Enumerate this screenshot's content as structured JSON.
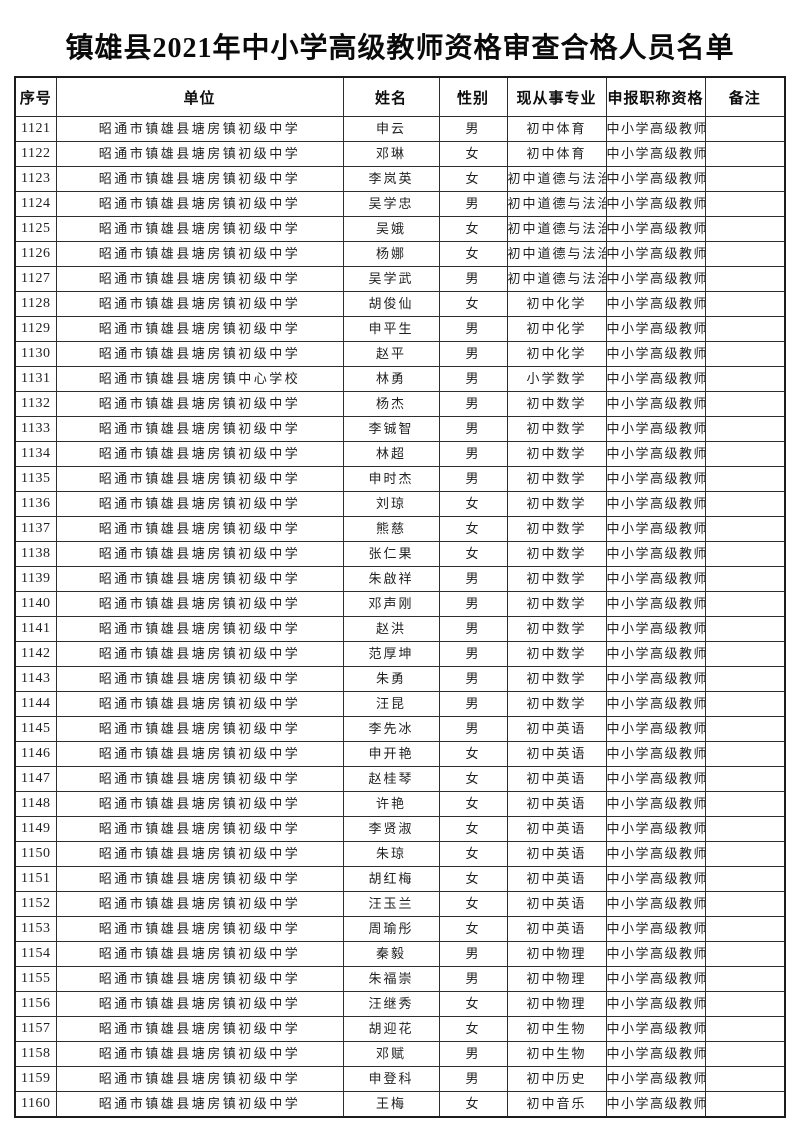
{
  "page": {
    "title": "镇雄县2021年中小学高级教师资格审查合格人员名单"
  },
  "table": {
    "headers": [
      "序号",
      "单位",
      "姓名",
      "性别",
      "现从事专业",
      "申报职称资格",
      "备注"
    ],
    "rows": [
      {
        "no": "1121",
        "unit": "昭通市镇雄县塘房镇初级中学",
        "name": "申云",
        "gender": "男",
        "major": "初中体育",
        "title": "中小学高级教师",
        "remark": ""
      },
      {
        "no": "1122",
        "unit": "昭通市镇雄县塘房镇初级中学",
        "name": "邓琳",
        "gender": "女",
        "major": "初中体育",
        "title": "中小学高级教师",
        "remark": ""
      },
      {
        "no": "1123",
        "unit": "昭通市镇雄县塘房镇初级中学",
        "name": "李岚英",
        "gender": "女",
        "major": "初中道德与法治",
        "title": "中小学高级教师",
        "remark": ""
      },
      {
        "no": "1124",
        "unit": "昭通市镇雄县塘房镇初级中学",
        "name": "吴学忠",
        "gender": "男",
        "major": "初中道德与法治",
        "title": "中小学高级教师",
        "remark": ""
      },
      {
        "no": "1125",
        "unit": "昭通市镇雄县塘房镇初级中学",
        "name": "吴娥",
        "gender": "女",
        "major": "初中道德与法治",
        "title": "中小学高级教师",
        "remark": ""
      },
      {
        "no": "1126",
        "unit": "昭通市镇雄县塘房镇初级中学",
        "name": "杨娜",
        "gender": "女",
        "major": "初中道德与法治",
        "title": "中小学高级教师",
        "remark": ""
      },
      {
        "no": "1127",
        "unit": "昭通市镇雄县塘房镇初级中学",
        "name": "吴学武",
        "gender": "男",
        "major": "初中道德与法治",
        "title": "中小学高级教师",
        "remark": ""
      },
      {
        "no": "1128",
        "unit": "昭通市镇雄县塘房镇初级中学",
        "name": "胡俊仙",
        "gender": "女",
        "major": "初中化学",
        "title": "中小学高级教师",
        "remark": ""
      },
      {
        "no": "1129",
        "unit": "昭通市镇雄县塘房镇初级中学",
        "name": "申平生",
        "gender": "男",
        "major": "初中化学",
        "title": "中小学高级教师",
        "remark": ""
      },
      {
        "no": "1130",
        "unit": "昭通市镇雄县塘房镇初级中学",
        "name": "赵平",
        "gender": "男",
        "major": "初中化学",
        "title": "中小学高级教师",
        "remark": ""
      },
      {
        "no": "1131",
        "unit": "昭通市镇雄县塘房镇中心学校",
        "name": "林勇",
        "gender": "男",
        "major": "小学数学",
        "title": "中小学高级教师",
        "remark": ""
      },
      {
        "no": "1132",
        "unit": "昭通市镇雄县塘房镇初级中学",
        "name": "杨杰",
        "gender": "男",
        "major": "初中数学",
        "title": "中小学高级教师",
        "remark": ""
      },
      {
        "no": "1133",
        "unit": "昭通市镇雄县塘房镇初级中学",
        "name": "李铖智",
        "gender": "男",
        "major": "初中数学",
        "title": "中小学高级教师",
        "remark": ""
      },
      {
        "no": "1134",
        "unit": "昭通市镇雄县塘房镇初级中学",
        "name": "林超",
        "gender": "男",
        "major": "初中数学",
        "title": "中小学高级教师",
        "remark": ""
      },
      {
        "no": "1135",
        "unit": "昭通市镇雄县塘房镇初级中学",
        "name": "申时杰",
        "gender": "男",
        "major": "初中数学",
        "title": "中小学高级教师",
        "remark": ""
      },
      {
        "no": "1136",
        "unit": "昭通市镇雄县塘房镇初级中学",
        "name": "刘琼",
        "gender": "女",
        "major": "初中数学",
        "title": "中小学高级教师",
        "remark": ""
      },
      {
        "no": "1137",
        "unit": "昭通市镇雄县塘房镇初级中学",
        "name": "熊慈",
        "gender": "女",
        "major": "初中数学",
        "title": "中小学高级教师",
        "remark": ""
      },
      {
        "no": "1138",
        "unit": "昭通市镇雄县塘房镇初级中学",
        "name": "张仁果",
        "gender": "女",
        "major": "初中数学",
        "title": "中小学高级教师",
        "remark": ""
      },
      {
        "no": "1139",
        "unit": "昭通市镇雄县塘房镇初级中学",
        "name": "朱啟祥",
        "gender": "男",
        "major": "初中数学",
        "title": "中小学高级教师",
        "remark": ""
      },
      {
        "no": "1140",
        "unit": "昭通市镇雄县塘房镇初级中学",
        "name": "邓声刚",
        "gender": "男",
        "major": "初中数学",
        "title": "中小学高级教师",
        "remark": ""
      },
      {
        "no": "1141",
        "unit": "昭通市镇雄县塘房镇初级中学",
        "name": "赵洪",
        "gender": "男",
        "major": "初中数学",
        "title": "中小学高级教师",
        "remark": ""
      },
      {
        "no": "1142",
        "unit": "昭通市镇雄县塘房镇初级中学",
        "name": "范厚坤",
        "gender": "男",
        "major": "初中数学",
        "title": "中小学高级教师",
        "remark": ""
      },
      {
        "no": "1143",
        "unit": "昭通市镇雄县塘房镇初级中学",
        "name": "朱勇",
        "gender": "男",
        "major": "初中数学",
        "title": "中小学高级教师",
        "remark": ""
      },
      {
        "no": "1144",
        "unit": "昭通市镇雄县塘房镇初级中学",
        "name": "汪昆",
        "gender": "男",
        "major": "初中数学",
        "title": "中小学高级教师",
        "remark": ""
      },
      {
        "no": "1145",
        "unit": "昭通市镇雄县塘房镇初级中学",
        "name": "李先冰",
        "gender": "男",
        "major": "初中英语",
        "title": "中小学高级教师",
        "remark": ""
      },
      {
        "no": "1146",
        "unit": "昭通市镇雄县塘房镇初级中学",
        "name": "申开艳",
        "gender": "女",
        "major": "初中英语",
        "title": "中小学高级教师",
        "remark": ""
      },
      {
        "no": "1147",
        "unit": "昭通市镇雄县塘房镇初级中学",
        "name": "赵桂琴",
        "gender": "女",
        "major": "初中英语",
        "title": "中小学高级教师",
        "remark": ""
      },
      {
        "no": "1148",
        "unit": "昭通市镇雄县塘房镇初级中学",
        "name": "许艳",
        "gender": "女",
        "major": "初中英语",
        "title": "中小学高级教师",
        "remark": ""
      },
      {
        "no": "1149",
        "unit": "昭通市镇雄县塘房镇初级中学",
        "name": "李贤淑",
        "gender": "女",
        "major": "初中英语",
        "title": "中小学高级教师",
        "remark": ""
      },
      {
        "no": "1150",
        "unit": "昭通市镇雄县塘房镇初级中学",
        "name": "朱琼",
        "gender": "女",
        "major": "初中英语",
        "title": "中小学高级教师",
        "remark": ""
      },
      {
        "no": "1151",
        "unit": "昭通市镇雄县塘房镇初级中学",
        "name": "胡红梅",
        "gender": "女",
        "major": "初中英语",
        "title": "中小学高级教师",
        "remark": ""
      },
      {
        "no": "1152",
        "unit": "昭通市镇雄县塘房镇初级中学",
        "name": "汪玉兰",
        "gender": "女",
        "major": "初中英语",
        "title": "中小学高级教师",
        "remark": ""
      },
      {
        "no": "1153",
        "unit": "昭通市镇雄县塘房镇初级中学",
        "name": "周瑜彤",
        "gender": "女",
        "major": "初中英语",
        "title": "中小学高级教师",
        "remark": ""
      },
      {
        "no": "1154",
        "unit": "昭通市镇雄县塘房镇初级中学",
        "name": "秦毅",
        "gender": "男",
        "major": "初中物理",
        "title": "中小学高级教师",
        "remark": ""
      },
      {
        "no": "1155",
        "unit": "昭通市镇雄县塘房镇初级中学",
        "name": "朱福崇",
        "gender": "男",
        "major": "初中物理",
        "title": "中小学高级教师",
        "remark": ""
      },
      {
        "no": "1156",
        "unit": "昭通市镇雄县塘房镇初级中学",
        "name": "汪继秀",
        "gender": "女",
        "major": "初中物理",
        "title": "中小学高级教师",
        "remark": ""
      },
      {
        "no": "1157",
        "unit": "昭通市镇雄县塘房镇初级中学",
        "name": "胡迎花",
        "gender": "女",
        "major": "初中生物",
        "title": "中小学高级教师",
        "remark": ""
      },
      {
        "no": "1158",
        "unit": "昭通市镇雄县塘房镇初级中学",
        "name": "邓赋",
        "gender": "男",
        "major": "初中生物",
        "title": "中小学高级教师",
        "remark": ""
      },
      {
        "no": "1159",
        "unit": "昭通市镇雄县塘房镇初级中学",
        "name": "申登科",
        "gender": "男",
        "major": "初中历史",
        "title": "中小学高级教师",
        "remark": ""
      },
      {
        "no": "1160",
        "unit": "昭通市镇雄县塘房镇初级中学",
        "name": "王梅",
        "gender": "女",
        "major": "初中音乐",
        "title": "中小学高级教师",
        "remark": ""
      }
    ]
  }
}
